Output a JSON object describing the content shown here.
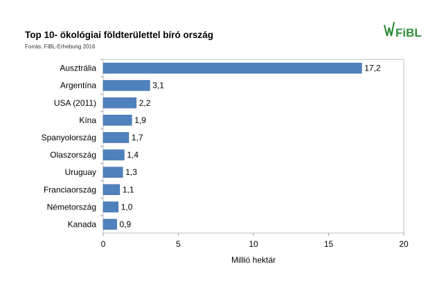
{
  "header": {
    "title": "Top 10- ökológiai földterülettel bíró ország",
    "source": "Forrás: FiBL-Erhebung 2016",
    "logo_text": "FiBL",
    "logo_color": "#2f8f3a"
  },
  "chart_data": {
    "type": "bar",
    "orientation": "horizontal",
    "categories": [
      "Ausztrália",
      "Argentína",
      "USA (2011)",
      "Kína",
      "Spanyolország",
      "Olaszország",
      "Uruguay",
      "Franciaország",
      "Németország",
      "Kanada"
    ],
    "values": [
      17.2,
      3.1,
      2.2,
      1.9,
      1.7,
      1.4,
      1.3,
      1.1,
      1.0,
      0.9
    ],
    "value_labels": [
      "17,2",
      "3,1",
      "2,2",
      "1,9",
      "1,7",
      "1,4",
      "1,3",
      "1,1",
      "1,0",
      "0,9"
    ],
    "xlabel": "Millió hektár",
    "xlim": [
      0,
      20
    ],
    "xticks": [
      0,
      5,
      10,
      15,
      20
    ],
    "grid": false,
    "bar_color": "#4f81bd"
  }
}
